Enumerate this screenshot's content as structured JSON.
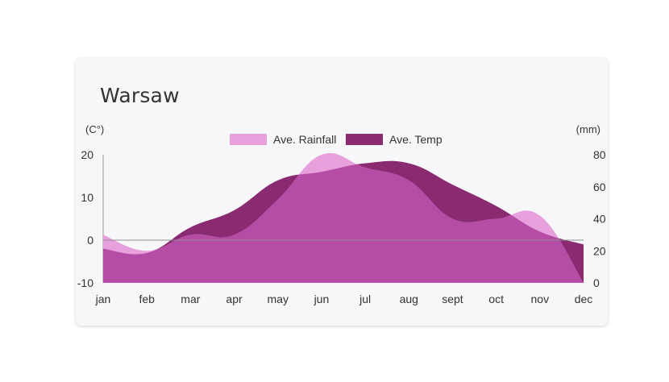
{
  "card": {
    "title": "Warsaw"
  },
  "chart_data": {
    "type": "area",
    "title": "Warsaw",
    "categories": [
      "jan",
      "feb",
      "mar",
      "apr",
      "may",
      "jun",
      "jul",
      "aug",
      "sept",
      "oct",
      "nov",
      "dec"
    ],
    "y_left": {
      "label": "(C°)",
      "ticks": [
        20,
        10,
        0,
        -10
      ],
      "range": [
        -10,
        20
      ]
    },
    "y_right": {
      "label": "(mm)",
      "ticks": [
        80,
        60,
        40,
        20,
        0
      ],
      "range": [
        0,
        80
      ]
    },
    "series": [
      {
        "name": "Ave. Temp",
        "axis": "left",
        "values": [
          -2,
          -3,
          3,
          7,
          14,
          16,
          18,
          18,
          13,
          8,
          2,
          -1
        ],
        "color": "#8a2a70"
      },
      {
        "name": "Ave. Rainfall",
        "axis": "right",
        "values": [
          30,
          20,
          30,
          30,
          52,
          80,
          72,
          64,
          40,
          40,
          42,
          0
        ],
        "color": "#e8a0dc"
      }
    ],
    "overlap_color": "#b54da6",
    "zero_line": true,
    "legend_position": "top-center"
  }
}
